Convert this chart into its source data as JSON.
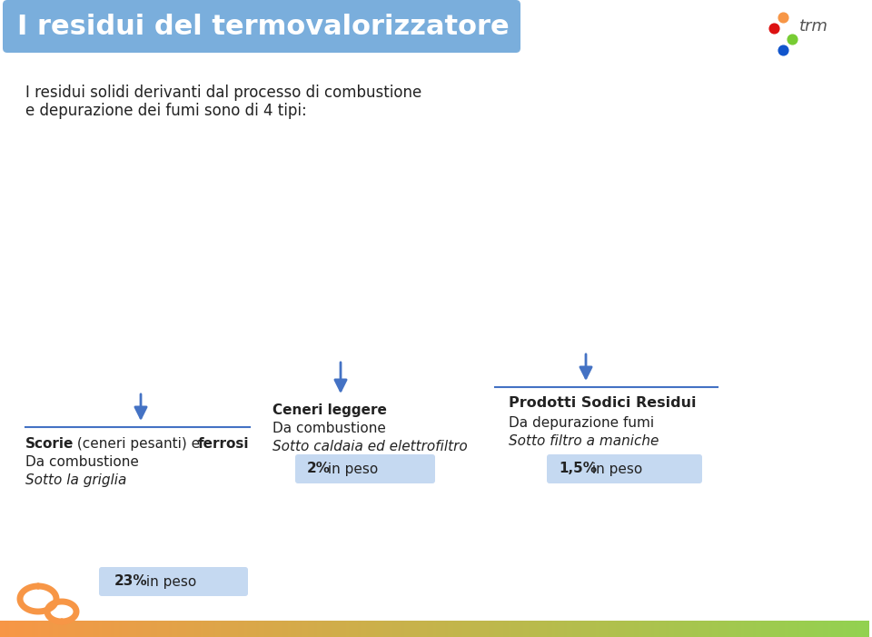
{
  "title": "I residui del termovalorizzatore",
  "title_bg_color": "#7aaedc",
  "title_text_color": "#ffffff",
  "body_line1": "I residui solidi derivanti dal processo di combustione",
  "body_line2": "e depurazione dei fumi sono di 4 tipi:",
  "body_text_color": "#222222",
  "background_color": "#ffffff",
  "box1_bold1": "Scorie",
  "box1_normal": " (ceneri pesanti) e ",
  "box1_bold2": "ferrosi",
  "box1_line2": "Da combustione",
  "box1_line3": "Sotto la griglia",
  "box1_pct_bold": "23%",
  "box1_pct_rest": " in peso",
  "box2_bold": "Ceneri leggere",
  "box2_line2": "Da combustione",
  "box2_line3": "Sotto caldaia ed elettrofiltro",
  "box2_pct_bold": "2%",
  "box2_pct_rest": " in peso",
  "box3_bold": "Prodotti Sodici Residui",
  "box3_line2": "Da depurazione fumi",
  "box3_line3": "Sotto filtro a maniche",
  "box3_pct_bold": "1,5%",
  "box3_pct_rest": " in peso",
  "badge_bg": "#c5d9f1",
  "arrow_color": "#4472c4",
  "line_color": "#4472c4",
  "bottom_bar_orange": "#f79646",
  "bottom_bar_green": "#92d050",
  "trm_dots": [
    "#f79646",
    "#dd1111",
    "#77cc33",
    "#1155cc"
  ],
  "trm_text_color": "#555555"
}
